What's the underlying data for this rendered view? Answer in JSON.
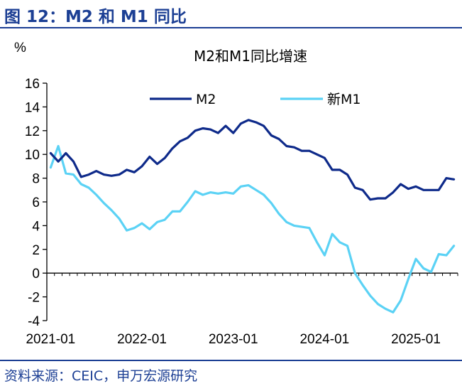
{
  "figure_title": "图 12：M2 和 M1 同比",
  "source": "资料来源：CEIC，申万宏源研究",
  "chart_data": {
    "type": "line",
    "title": "M2和M1同比增速",
    "ylabel": "%",
    "xlabel": "",
    "ylim": [
      -4,
      16
    ],
    "yticks": [
      -4,
      -2,
      0,
      2,
      4,
      6,
      8,
      10,
      12,
      14,
      16
    ],
    "x_tick_labels": [
      "2021-01",
      "2022-01",
      "2023-01",
      "2024-01",
      "2025-01"
    ],
    "x_tick_index": [
      0,
      12,
      24,
      36,
      48
    ],
    "legend_position": "top",
    "x": [
      "2020-12",
      "2021-01",
      "2021-02",
      "2021-03",
      "2021-04",
      "2021-05",
      "2021-06",
      "2021-07",
      "2021-08",
      "2021-09",
      "2021-10",
      "2021-11",
      "2021-12",
      "2022-01",
      "2022-02",
      "2022-03",
      "2022-04",
      "2022-05",
      "2022-06",
      "2022-07",
      "2022-08",
      "2022-09",
      "2022-10",
      "2022-11",
      "2022-12",
      "2023-01",
      "2023-02",
      "2023-03",
      "2023-04",
      "2023-05",
      "2023-06",
      "2023-07",
      "2023-08",
      "2023-09",
      "2023-10",
      "2023-11",
      "2023-12",
      "2024-01",
      "2024-02",
      "2024-03",
      "2024-04",
      "2024-05",
      "2024-06",
      "2024-07",
      "2024-08",
      "2024-09",
      "2024-10",
      "2024-11",
      "2024-12",
      "2025-01",
      "2025-02",
      "2025-03",
      "2025-04",
      "2025-05"
    ],
    "series": [
      {
        "name": "M2",
        "color": "#0e2a8a",
        "values": [
          10.1,
          9.4,
          10.1,
          9.4,
          8.1,
          8.3,
          8.6,
          8.3,
          8.2,
          8.3,
          8.7,
          8.5,
          9.0,
          9.8,
          9.2,
          9.7,
          10.5,
          11.1,
          11.4,
          12.0,
          12.2,
          12.1,
          11.8,
          12.4,
          11.8,
          12.6,
          12.9,
          12.7,
          12.4,
          11.6,
          11.3,
          10.7,
          10.6,
          10.3,
          10.3,
          10.0,
          9.7,
          8.7,
          8.7,
          8.3,
          7.2,
          7.0,
          6.2,
          6.3,
          6.3,
          6.8,
          7.5,
          7.1,
          7.3,
          7.0,
          7.0,
          7.0,
          8.0,
          7.9
        ]
      },
      {
        "name": "新M1",
        "color": "#5bd2f5",
        "values": [
          8.9,
          10.7,
          8.4,
          8.3,
          7.5,
          7.2,
          6.6,
          5.9,
          5.3,
          4.6,
          3.6,
          3.8,
          4.2,
          3.7,
          4.3,
          4.5,
          5.2,
          5.2,
          6.0,
          6.9,
          6.6,
          6.8,
          6.7,
          6.8,
          6.7,
          7.3,
          7.4,
          7.0,
          6.6,
          5.9,
          5.0,
          4.3,
          4.0,
          3.9,
          3.8,
          2.6,
          1.5,
          3.3,
          2.6,
          2.3,
          0.0,
          -1.0,
          -1.9,
          -2.6,
          -3.0,
          -3.3,
          -2.3,
          -0.5,
          1.2,
          0.4,
          0.1,
          1.6,
          1.5,
          2.3
        ]
      }
    ]
  }
}
